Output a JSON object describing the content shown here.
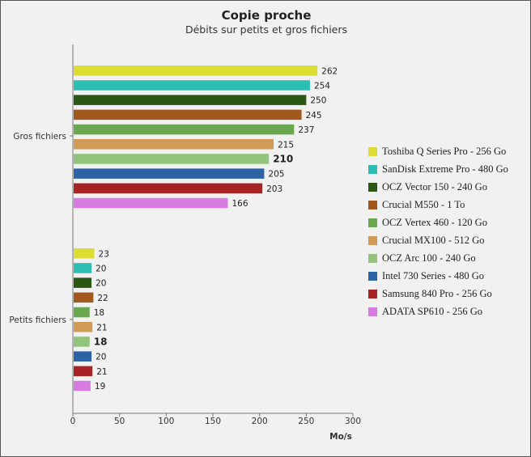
{
  "chart_data": {
    "type": "bar",
    "orientation": "horizontal",
    "title": "Copie proche",
    "subtitle": "Débits sur petits et gros fichiers",
    "xlabel": "Mo/s",
    "xlim": [
      0,
      300
    ],
    "xticks": [
      0,
      50,
      100,
      150,
      200,
      250,
      300
    ],
    "categories": [
      "Gros fichiers",
      "Petits fichiers"
    ],
    "highlight_series": "OCZ Arc 100 - 240 Go",
    "legend_position": "right",
    "grid": false,
    "series": [
      {
        "name": "Toshiba Q Series Pro - 256 Go",
        "color": "#dcdc32",
        "values": [
          262,
          23
        ]
      },
      {
        "name": "SanDisk Extreme Pro - 480 Go",
        "color": "#2cbeb3",
        "values": [
          254,
          20
        ]
      },
      {
        "name": "OCZ Vector 150 - 240 Go",
        "color": "#2a5714",
        "values": [
          250,
          20
        ]
      },
      {
        "name": "Crucial M550 - 1 To",
        "color": "#a2591d",
        "values": [
          245,
          22
        ]
      },
      {
        "name": "OCZ Vertex 460 - 120 Go",
        "color": "#6aa84f",
        "values": [
          237,
          18
        ]
      },
      {
        "name": "Crucial MX100 - 512 Go",
        "color": "#d19a56",
        "values": [
          215,
          21
        ]
      },
      {
        "name": "OCZ Arc 100 - 240 Go",
        "color": "#93c47d",
        "values": [
          210,
          18
        ]
      },
      {
        "name": "Intel 730 Series - 480 Go",
        "color": "#2c63a5",
        "values": [
          205,
          20
        ]
      },
      {
        "name": "Samsung 840 Pro - 256 Go",
        "color": "#a82323",
        "values": [
          203,
          21
        ]
      },
      {
        "name": "ADATA SP610 - 256 Go",
        "color": "#d87be0",
        "values": [
          166,
          19
        ]
      }
    ]
  }
}
